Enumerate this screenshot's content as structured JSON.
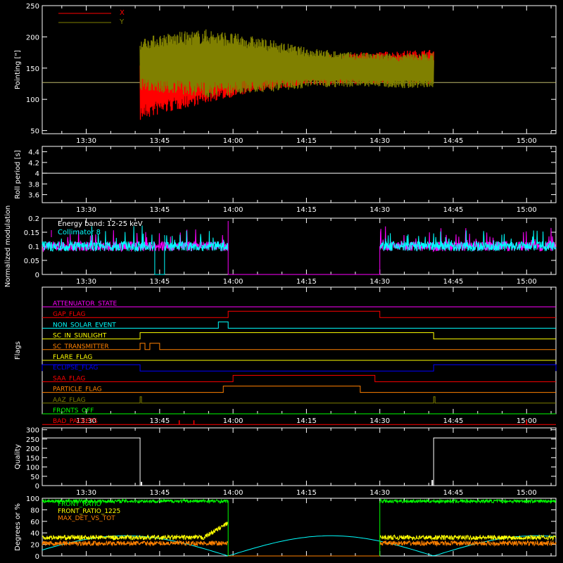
{
  "chart_data": [
    {
      "type": "line",
      "ylabel": "Pointing [\"]",
      "ylim": [
        45,
        250
      ],
      "yticks": [
        50,
        100,
        150,
        200,
        250
      ],
      "xlim": [
        "13:21",
        "15:06"
      ],
      "xticks": [
        "13:30",
        "13:45",
        "14:00",
        "14:15",
        "14:30",
        "14:45",
        "15:00"
      ],
      "legend": {
        "placement": "top-left",
        "entries": [
          "X",
          "Y"
        ]
      },
      "series": [
        {
          "name": "X",
          "color": "#ff0000",
          "envelope": {
            "t": [
              "13:41",
              "13:45",
              "13:55",
              "14:05",
              "14:15",
              "14:25",
              "14:35",
              "14:41"
            ],
            "low": [
              65,
              75,
              95,
              112,
              122,
              124,
              124,
              124
            ],
            "high": [
              180,
              182,
              170,
              165,
              168,
              175,
              178,
              180
            ]
          }
        },
        {
          "name": "Y",
          "color": "#808000",
          "envelope": {
            "t": [
              "13:41",
              "13:45",
              "13:55",
              "14:05",
              "14:15",
              "14:25",
              "14:35",
              "14:41"
            ],
            "low": [
              115,
              110,
              103,
              110,
              118,
              120,
              118,
              118
            ],
            "high": [
              198,
              205,
              213,
              200,
              183,
              175,
              173,
              175
            ]
          }
        }
      ],
      "reference_line": {
        "y": 127,
        "color": "#bdb76b"
      }
    },
    {
      "type": "line",
      "ylabel": "Roll period [s]",
      "ylim": [
        3.45,
        4.5
      ],
      "yticks": [
        3.6,
        3.8,
        4.0,
        4.2,
        4.4
      ],
      "xticks": [
        "13:30",
        "13:45",
        "14:00",
        "14:15",
        "14:30",
        "14:45",
        "15:00"
      ],
      "series": [
        {
          "name": "",
          "values": [
            4.0,
            4.0
          ],
          "x": [
            "13:21",
            "15:06"
          ],
          "color": "#ffffff"
        }
      ]
    },
    {
      "type": "line",
      "ylabel": "Normalized modulation",
      "ylim": [
        0,
        0.2
      ],
      "yticks": [
        0.0,
        0.05,
        0.1,
        0.15,
        0.2
      ],
      "xticks": [
        "13:30",
        "13:45",
        "14:00",
        "14:15",
        "14:30",
        "14:45",
        "15:00"
      ],
      "annotation": "Energy band: 12-25 keV",
      "legend": {
        "placement": "top-left",
        "entries": [
          "Collimator 8"
        ]
      },
      "series": [
        {
          "name": "Collimator 8",
          "color": "#00ffff",
          "segments": [
            {
              "start": "13:21",
              "end": "13:44",
              "mean": 0.1
            },
            {
              "start": "13:46",
              "end": "13:59",
              "mean": 0.1
            },
            {
              "start": "14:30",
              "end": "15:06",
              "mean": 0.1
            }
          ]
        },
        {
          "name": "",
          "color": "#ff00ff",
          "segments": [
            {
              "start": "13:21",
              "end": "13:59",
              "mean": 0.1
            },
            {
              "start": "14:30",
              "end": "15:06",
              "mean": 0.1
            }
          ]
        }
      ]
    },
    {
      "type": "line",
      "ylabel": "Flags",
      "xticks": [
        "13:30",
        "13:45",
        "14:00",
        "14:15",
        "14:30",
        "14:45",
        "15:00"
      ],
      "flags": [
        {
          "name": "ATTENUATOR_STATE",
          "color": "#ff00ff",
          "high": []
        },
        {
          "name": "GAP_FLAG",
          "color": "#ff0000",
          "high": [
            [
              "13:59",
              "14:30"
            ]
          ]
        },
        {
          "name": "NON_SOLAR_EVENT",
          "color": "#00ffff",
          "high": [
            [
              "13:57",
              "13:59"
            ]
          ]
        },
        {
          "name": "SC_IN_SUNLIGHT",
          "color": "#ffff00",
          "high": [
            [
              "13:41",
              "14:41"
            ]
          ]
        },
        {
          "name": "SC_TRANSMITTER",
          "color": "#ff8000",
          "high": [
            [
              "13:41",
              "13:42"
            ],
            [
              "13:43",
              "13:45"
            ]
          ]
        },
        {
          "name": "FLARE_FLAG",
          "color": "#ffff00",
          "high": []
        },
        {
          "name": "ECLIPSE_FLAG",
          "color": "#0000ff",
          "high": [
            [
              "13:21",
              "13:41"
            ],
            [
              "14:41",
              "15:06"
            ]
          ]
        },
        {
          "name": "SAA_FLAG",
          "color": "#ff0000",
          "high": [
            [
              "14:00",
              "14:29"
            ]
          ]
        },
        {
          "name": "PARTICLE_FLAG",
          "color": "#ff8000",
          "high": [
            [
              "13:58",
              "14:26"
            ]
          ]
        },
        {
          "name": "AAZ_FLAG",
          "color": "#808000",
          "high": [
            [
              "13:41",
              "13:41"
            ],
            [
              "14:41",
              "14:41"
            ]
          ]
        },
        {
          "name": "FRONTS_OFF",
          "color": "#00ff00",
          "high": []
        },
        {
          "name": "BAD_PACKETS",
          "color": "#ff0000",
          "spikes": [
            "13:49",
            "13:52",
            "15:00"
          ]
        }
      ]
    },
    {
      "type": "line",
      "ylabel": "Quality",
      "ylim": [
        0,
        310
      ],
      "yticks": [
        0,
        50,
        100,
        150,
        200,
        250,
        300
      ],
      "xticks": [
        "13:30",
        "13:45",
        "14:00",
        "14:15",
        "14:30",
        "14:45",
        "15:00"
      ],
      "series": [
        {
          "name": "",
          "color": "#ffffff",
          "x": [
            "13:21",
            "13:41",
            "13:41",
            "14:41",
            "14:41",
            "15:06"
          ],
          "values": [
            256,
            256,
            0,
            0,
            256,
            256
          ]
        }
      ]
    },
    {
      "type": "line",
      "ylabel": "Degrees or %",
      "ylim": [
        0,
        100
      ],
      "yticks": [
        0,
        20,
        40,
        60,
        80,
        100
      ],
      "legend": {
        "placement": "top-left",
        "entries": [
          "FRONT_RATIO",
          "FRONT_RATIO_1225",
          "MAX_DET_VS_TOT"
        ]
      },
      "series": [
        {
          "name": "FRONT_RATIO",
          "color": "#00ff00",
          "level": 95
        },
        {
          "name": "FRONT_RATIO_1225",
          "color": "#ffff00",
          "level": 32
        },
        {
          "name": "MAX_DET_VS_TOT",
          "color": "#ff8000",
          "level": 22
        },
        {
          "name": "",
          "color": "#00ffff",
          "shape": "arc",
          "peak": 35
        }
      ]
    }
  ]
}
